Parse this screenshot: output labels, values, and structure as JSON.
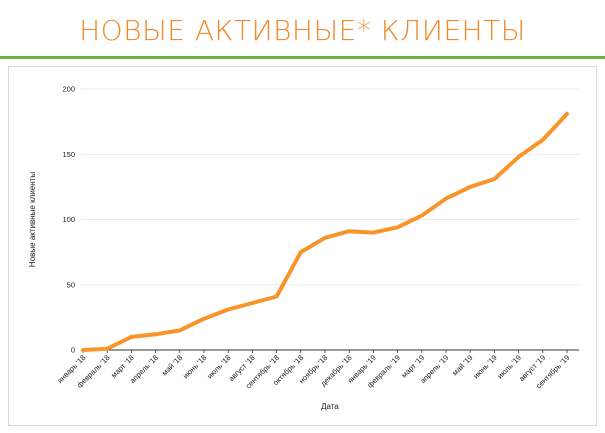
{
  "slide": {
    "title": "НОВЫЕ АКТИВНЫЕ* КЛИЕНТЫ"
  },
  "colors": {
    "title": "#f08a2c",
    "rule": "#6ab23d",
    "line": "#f7952b",
    "grid": "#e3e3e3"
  },
  "chart_data": {
    "type": "line",
    "title": "",
    "xlabel": "Дата",
    "ylabel": "Новые активные клиенты",
    "ylim": [
      0,
      200
    ],
    "yticks": [
      0,
      50,
      100,
      150,
      200
    ],
    "grid": true,
    "legend": "none",
    "categories": [
      "январь '18",
      "февраль '18",
      "март '18",
      "апрель '18",
      "май '18",
      "июнь '18",
      "июль '18",
      "август '18",
      "сентябрь '18",
      "октябрь '18",
      "ноябрь '18",
      "декабрь '18",
      "январь '19",
      "февраль '19",
      "март '19",
      "апрель '19",
      "май '19",
      "июнь '19",
      "июль '19",
      "август '19",
      "сентябрь '19"
    ],
    "series": [
      {
        "values": [
          0,
          1,
          10,
          12,
          15,
          24,
          31,
          36,
          41,
          75,
          86,
          91,
          90,
          94,
          103,
          116,
          125,
          131,
          148,
          161,
          181
        ]
      }
    ]
  }
}
